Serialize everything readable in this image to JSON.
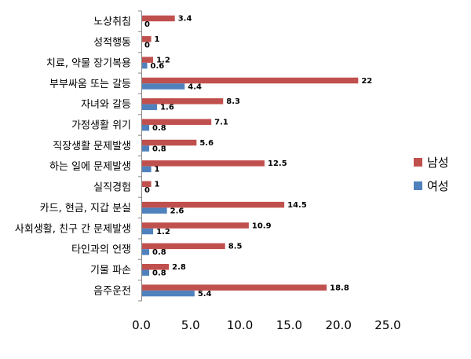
{
  "chart_data": {
    "type": "bar",
    "orientation": "horizontal",
    "categories": [
      "노상취침",
      "성적행동",
      "치료, 약물 장기복용",
      "부부싸움 또는 갈등",
      "자녀와 갈등",
      "가정생활 위기",
      "직장생활 문제발생",
      "하는 일에 문제발생",
      "실직경험",
      "카드, 현금, 지갑 분실",
      "사회생활, 친구 간 문제발생",
      "타인과의 언쟁",
      "기물 파손",
      "음주운전"
    ],
    "series": [
      {
        "name": "남성",
        "color": "#C0504D",
        "values": [
          3.4,
          1,
          1.2,
          22,
          8.3,
          7.1,
          5.6,
          12.5,
          1,
          14.5,
          10.9,
          8.5,
          2.8,
          18.8
        ]
      },
      {
        "name": "여성",
        "color": "#4F81BD",
        "values": [
          0,
          0,
          0.6,
          4.4,
          1.6,
          0.8,
          0.8,
          1,
          0,
          2.6,
          1.2,
          0.8,
          0.8,
          5.4
        ]
      }
    ],
    "xlim": [
      0,
      25
    ],
    "xticks": [
      "0.0",
      "5.0",
      "10.0",
      "15.0",
      "20.0",
      "25.0"
    ],
    "grid": false,
    "legend_position": "right"
  }
}
